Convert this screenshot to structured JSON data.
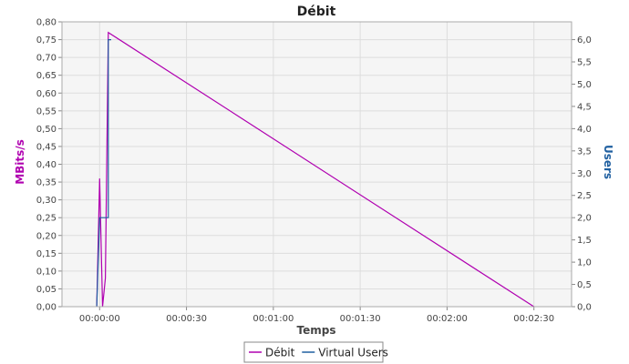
{
  "chart_data": {
    "type": "line",
    "title": "Débit",
    "xlabel": "Temps",
    "ylabel_left": "MBits/s",
    "ylabel_right": "Users",
    "x_range_seconds": [
      -13,
      163
    ],
    "x_ticks": [
      {
        "t": 0,
        "label": "00:00:00"
      },
      {
        "t": 30,
        "label": "00:00:30"
      },
      {
        "t": 60,
        "label": "00:01:00"
      },
      {
        "t": 90,
        "label": "00:01:30"
      },
      {
        "t": 120,
        "label": "00:02:00"
      },
      {
        "t": 150,
        "label": "00:02:30"
      }
    ],
    "ylim_left": [
      0,
      0.8
    ],
    "y_ticks_left": [
      "0,00",
      "0,05",
      "0,10",
      "0,15",
      "0,20",
      "0,25",
      "0,30",
      "0,35",
      "0,40",
      "0,45",
      "0,50",
      "0,55",
      "0,60",
      "0,65",
      "0,70",
      "0,75",
      "0,80"
    ],
    "ylim_right": [
      0,
      6.4
    ],
    "y_ticks_right": [
      "0,0",
      "0,5",
      "1,0",
      "1,5",
      "2,0",
      "2,5",
      "3,0",
      "3,5",
      "4,0",
      "4,5",
      "5,0",
      "5,5",
      "6,0"
    ],
    "grid": true,
    "legend_position": "bottom",
    "series": [
      {
        "name": "Débit",
        "axis": "left",
        "color": "#b000b0",
        "points": [
          [
            -1,
            0
          ],
          [
            0,
            0.36
          ],
          [
            1,
            0
          ],
          [
            2,
            0.08
          ],
          [
            3,
            0.77
          ],
          [
            150,
            0
          ]
        ]
      },
      {
        "name": "Virtual Users",
        "axis": "right",
        "color": "#1f5fa0",
        "step": true,
        "points": [
          [
            -1,
            0
          ],
          [
            0,
            2
          ],
          [
            3,
            2
          ],
          [
            3,
            6
          ],
          [
            4,
            6
          ]
        ]
      }
    ]
  }
}
